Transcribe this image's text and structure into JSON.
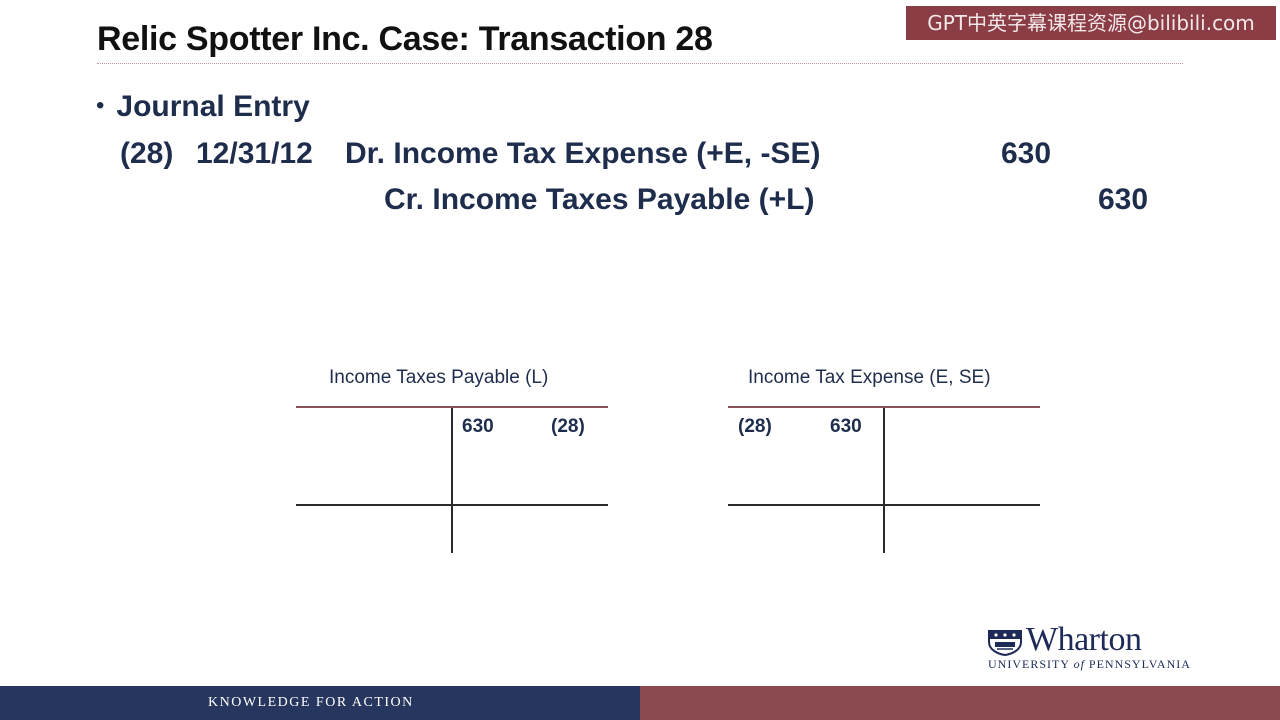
{
  "watermark": "GPT中英字幕课程资源@bilibili.com",
  "slide": {
    "title": "Relic Spotter Inc. Case: Transaction 28",
    "bullet_label": "Journal Entry",
    "journal_entry": {
      "number": "(28)",
      "date": "12/31/12",
      "debit_line": "Dr. Income Tax Expense (+E, -SE)",
      "debit_amount": "630",
      "credit_line": "Cr. Income Taxes Payable (+L)",
      "credit_amount": "630"
    },
    "t_accounts": [
      {
        "title": "Income Taxes Payable (L)",
        "credit_amount": "630",
        "credit_ref": "(28)"
      },
      {
        "title": "Income Tax Expense (E, SE)",
        "debit_ref": "(28)",
        "debit_amount": "630"
      }
    ]
  },
  "logo": {
    "name": "Wharton",
    "subtitle_prefix": "UNIVERSITY ",
    "subtitle_of": "of",
    "subtitle_suffix": " PENNSYLVANIA"
  },
  "footer": {
    "tagline": "KNOWLEDGE FOR ACTION"
  },
  "colors": {
    "title_text": "#111111",
    "body_text": "#1f2d4d",
    "footer_navy": "#26365e",
    "footer_maroon": "#8b4950",
    "watermark_bg": "#8a3d45"
  }
}
